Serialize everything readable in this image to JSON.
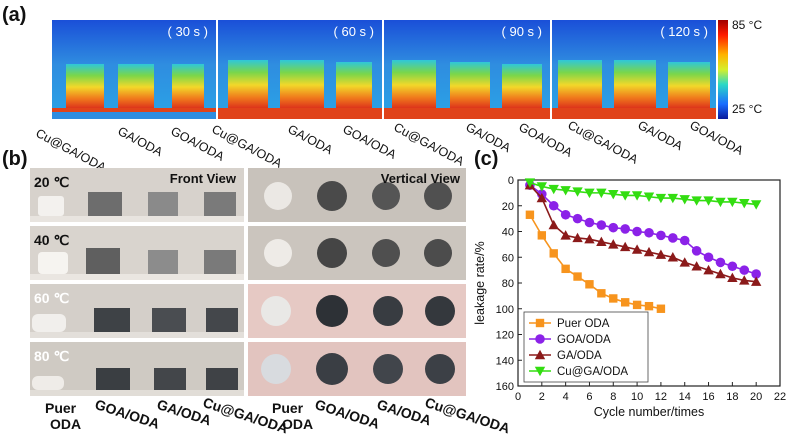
{
  "panel_a": {
    "letter": "(a)",
    "frames": [
      {
        "time": "( 30 s )"
      },
      {
        "time": "( 60 s )"
      },
      {
        "time": "( 90 s )"
      },
      {
        "time": "( 120 s )"
      }
    ],
    "colorbar": {
      "max": "85 °C",
      "min": "25 °C"
    },
    "sample_labels": [
      "Cu@GA/ODA",
      "GA/ODA",
      "GOA/ODA"
    ]
  },
  "panel_b": {
    "letter": "(b)",
    "front_title": "Front View",
    "vertical_title": "Vertical View",
    "temperatures": [
      "20 ℃",
      "40 ℃",
      "60 ℃",
      "80 ℃"
    ],
    "bottom_labels": [
      {
        "line1": "Puer",
        "line2": "ODA"
      },
      {
        "line1": "GOA/ODA",
        "line2": ""
      },
      {
        "line1": "GA/ODA",
        "line2": ""
      },
      {
        "line1": "Cu@GA/ODA",
        "line2": ""
      }
    ]
  },
  "panel_c": {
    "letter": "(c)"
  },
  "chart_data": {
    "type": "line",
    "title": "",
    "xlabel": "Cycle number/times",
    "ylabel": "leakage rate/%",
    "xlim": [
      0,
      22
    ],
    "ylim": [
      0,
      160
    ],
    "y_inverted": true,
    "x_ticks": [
      "0",
      "2",
      "4",
      "6",
      "8",
      "10",
      "12",
      "14",
      "16",
      "18",
      "20",
      "22"
    ],
    "y_ticks": [
      "0",
      "20",
      "40",
      "60",
      "80",
      "100",
      "120",
      "140",
      "160"
    ],
    "legend_position": "bottom-left",
    "series": [
      {
        "name": "Puer ODA",
        "color": "#f7941d",
        "marker": "square",
        "x": [
          1,
          2,
          3,
          4,
          5,
          6,
          7,
          8,
          9,
          10,
          11,
          12
        ],
        "y": [
          27,
          43,
          57,
          69,
          75,
          81,
          88,
          92,
          95,
          97,
          98,
          100
        ]
      },
      {
        "name": "GOA/ODA",
        "color": "#8b22e8",
        "marker": "circle",
        "x": [
          1,
          2,
          3,
          4,
          5,
          6,
          7,
          8,
          9,
          10,
          11,
          12,
          13,
          14,
          15,
          16,
          17,
          18,
          19,
          20
        ],
        "y": [
          4,
          11,
          20,
          27,
          30,
          33,
          35,
          37,
          38,
          40,
          41,
          43,
          45,
          47,
          55,
          60,
          64,
          67,
          70,
          73
        ]
      },
      {
        "name": "GA/ODA",
        "color": "#8b1a1a",
        "marker": "triangle",
        "x": [
          1,
          2,
          3,
          4,
          5,
          6,
          7,
          8,
          9,
          10,
          11,
          12,
          13,
          14,
          15,
          16,
          17,
          18,
          19,
          20
        ],
        "y": [
          4,
          14,
          35,
          43,
          45,
          46,
          48,
          50,
          52,
          54,
          56,
          58,
          60,
          64,
          67,
          70,
          73,
          76,
          78,
          79
        ]
      },
      {
        "name": "Cu@GA/ODA",
        "color": "#33dd11",
        "marker": "triangle-down",
        "x": [
          1,
          2,
          3,
          4,
          5,
          6,
          7,
          8,
          9,
          10,
          11,
          12,
          13,
          14,
          15,
          16,
          17,
          18,
          19,
          20
        ],
        "y": [
          2,
          5,
          7,
          8,
          9,
          10,
          10,
          11,
          12,
          12,
          13,
          14,
          14,
          15,
          16,
          16,
          17,
          17,
          18,
          19
        ]
      }
    ]
  }
}
